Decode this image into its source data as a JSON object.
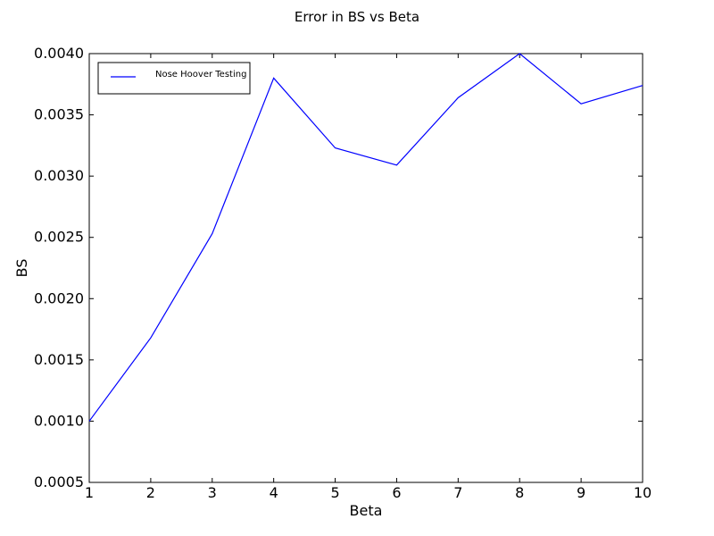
{
  "chart_data": {
    "type": "line",
    "title": "Error in BS vs Beta",
    "xlabel": "Beta",
    "ylabel": "BS",
    "xlim": [
      1,
      10
    ],
    "ylim": [
      0.0005,
      0.004
    ],
    "xticks": [
      1,
      2,
      3,
      4,
      5,
      6,
      7,
      8,
      9,
      10
    ],
    "xtick_labels": [
      "1",
      "2",
      "3",
      "4",
      "5",
      "6",
      "7",
      "8",
      "9",
      "10"
    ],
    "yticks": [
      0.0005,
      0.001,
      0.0015,
      0.002,
      0.0025,
      0.003,
      0.0035,
      0.004
    ],
    "ytick_labels": [
      "0.0005",
      "0.0010",
      "0.0015",
      "0.0020",
      "0.0025",
      "0.0030",
      "0.0035",
      "0.0040"
    ],
    "grid": false,
    "legend_position": "top-left",
    "series": [
      {
        "name": "Nose Hoover Testing",
        "color": "#0000ff",
        "x": [
          1,
          2,
          3,
          4,
          5,
          6,
          7,
          8,
          9,
          10
        ],
        "y": [
          0.001,
          0.00168,
          0.00253,
          0.0038,
          0.00323,
          0.00309,
          0.00364,
          0.004,
          0.00359,
          0.00374
        ]
      }
    ]
  }
}
